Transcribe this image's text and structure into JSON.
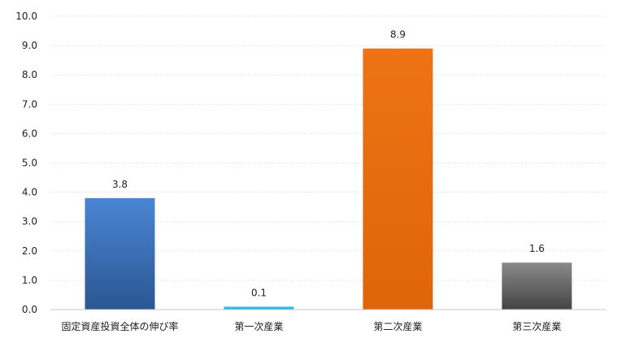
{
  "chart_data": {
    "type": "bar",
    "categories": [
      "固定資産投資全体の伸び率",
      "第一次産業",
      "第二次産業",
      "第三次産業"
    ],
    "values": [
      3.8,
      0.1,
      8.9,
      1.6
    ],
    "data_labels": [
      "3.8",
      "0.1",
      "8.9",
      "1.6"
    ],
    "title": "",
    "xlabel": "",
    "ylabel": "",
    "ylim": [
      0,
      10
    ],
    "yticks": [
      "0.0",
      "1.0",
      "2.0",
      "3.0",
      "4.0",
      "5.0",
      "6.0",
      "7.0",
      "8.0",
      "9.0",
      "10.0"
    ],
    "grid": true,
    "legend": "none",
    "bar_colors": [
      {
        "top": "#4a86d4",
        "bottom": "#2b5692"
      },
      {
        "top": "#3fc8f2",
        "bottom": "#18a8d8"
      },
      {
        "top": "#ee7314",
        "bottom": "#e0650a"
      },
      {
        "top": "#8a8a8a",
        "bottom": "#444444"
      }
    ]
  }
}
